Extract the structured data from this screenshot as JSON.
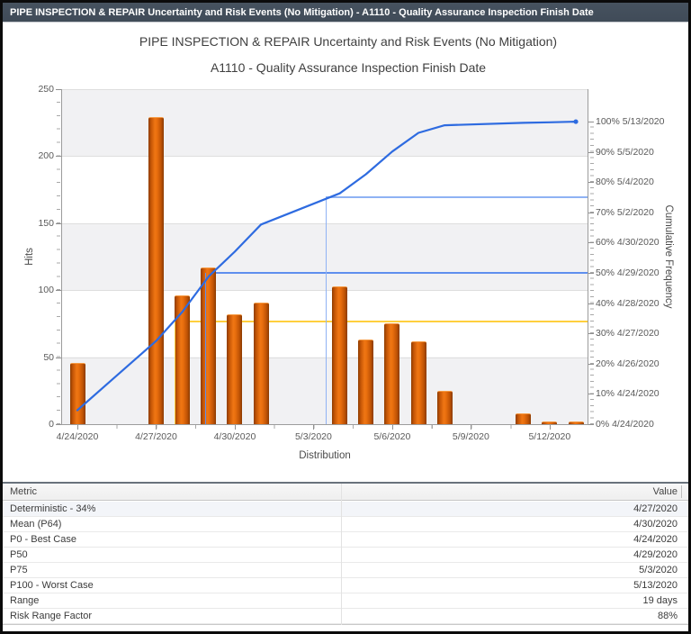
{
  "window": {
    "title": "PIPE INSPECTION & REPAIR Uncertainty and Risk Events (No Mitigation) - A1110 - Quality Assurance Inspection Finish Date"
  },
  "chart": {
    "title_line1": "PIPE INSPECTION & REPAIR Uncertainty and Risk Events (No Mitigation)",
    "title_line2": "A1110 - Quality Assurance Inspection Finish Date",
    "xlabel": "Distribution",
    "ylabel_left": "Hits",
    "ylabel_right": "Cumulative Frequency"
  },
  "chart_data": {
    "type": "bar",
    "subtype": "histogram-with-cumulative-s-curve",
    "title": "PIPE INSPECTION & REPAIR Uncertainty and Risk Events (No Mitigation)",
    "subtitle": "A1110 - Quality Assurance Inspection Finish Date",
    "xlabel": "Distribution",
    "grid": "horizontal-bands",
    "x_axis": {
      "start_date": "4/24/2020",
      "end_date": "5/13/2020",
      "total_days": 19,
      "tick_labels": [
        "4/24/2020",
        "4/27/2020",
        "4/30/2020",
        "5/3/2020",
        "5/6/2020",
        "5/9/2020",
        "5/12/2020"
      ],
      "tick_days": [
        0,
        3,
        6,
        9,
        12,
        15,
        18
      ]
    },
    "y_left": {
      "label": "Hits",
      "min": 0,
      "max": 250,
      "tick_step": 50,
      "tick_values": [
        0,
        50,
        100,
        150,
        200,
        250
      ]
    },
    "y_right": {
      "label": "Cumulative Frequency",
      "tick_labels": [
        "0% 4/24/2020",
        "10% 4/24/2020",
        "20% 4/26/2020",
        "30% 4/27/2020",
        "40% 4/28/2020",
        "50% 4/29/2020",
        "60% 4/30/2020",
        "70% 5/2/2020",
        "80% 5/4/2020",
        "90% 5/5/2020",
        "100% 5/13/2020"
      ],
      "tick_pcts": [
        0,
        10,
        20,
        30,
        40,
        50,
        60,
        70,
        80,
        90,
        100
      ]
    },
    "bars": [
      {
        "date": "4/24/2020",
        "day": 0,
        "hits": 46
      },
      {
        "date": "4/27/2020",
        "day": 3,
        "hits": 229
      },
      {
        "date": "4/28/2020",
        "day": 4,
        "hits": 96
      },
      {
        "date": "4/29/2020",
        "day": 5,
        "hits": 117
      },
      {
        "date": "4/30/2020",
        "day": 6,
        "hits": 82
      },
      {
        "date": "5/1/2020",
        "day": 7,
        "hits": 91
      },
      {
        "date": "5/4/2020",
        "day": 10,
        "hits": 103
      },
      {
        "date": "5/5/2020",
        "day": 11,
        "hits": 63
      },
      {
        "date": "5/6/2020",
        "day": 12,
        "hits": 75
      },
      {
        "date": "5/7/2020",
        "day": 13,
        "hits": 62
      },
      {
        "date": "5/8/2020",
        "day": 14,
        "hits": 25
      },
      {
        "date": "5/11/2020",
        "day": 17,
        "hits": 8
      },
      {
        "date": "5/12/2020",
        "day": 18,
        "hits": 2
      },
      {
        "date": "5/13/2020",
        "day": 19,
        "hits": 2
      }
    ],
    "curve": [
      {
        "day": 0,
        "pct": 4.6
      },
      {
        "day": 3,
        "pct": 27.5
      },
      {
        "day": 4,
        "pct": 37.1
      },
      {
        "day": 5,
        "pct": 48.8
      },
      {
        "day": 6,
        "pct": 57.0
      },
      {
        "day": 7,
        "pct": 66.0
      },
      {
        "day": 10,
        "pct": 76.3
      },
      {
        "day": 11,
        "pct": 82.6
      },
      {
        "day": 12,
        "pct": 90.1
      },
      {
        "day": 13,
        "pct": 96.3
      },
      {
        "day": 14,
        "pct": 98.8
      },
      {
        "day": 17,
        "pct": 99.6
      },
      {
        "day": 18,
        "pct": 99.8
      },
      {
        "day": 19,
        "pct": 100
      }
    ],
    "ref_lines": [
      {
        "name": "deterministic-34pct",
        "pct": 34,
        "day": 3.7,
        "color": "#FFCF3E"
      },
      {
        "name": "p50",
        "pct": 50,
        "day": 4.87,
        "color": "#5F8FEE"
      },
      {
        "name": "p75",
        "pct": 75,
        "day": 9.46,
        "color": "#8FB2F4"
      }
    ],
    "colors": {
      "bar": "#E2660C",
      "curve": "#2E6BE0",
      "titlebar": "#46525F",
      "band": "#F1F1F3"
    }
  },
  "table": {
    "columns": [
      "Metric",
      "Value"
    ],
    "rows": [
      [
        "Deterministic - 34%",
        "4/27/2020"
      ],
      [
        "Mean (P64)",
        "4/30/2020"
      ],
      [
        "P0 - Best Case",
        "4/24/2020"
      ],
      [
        "P50",
        "4/29/2020"
      ],
      [
        "P75",
        "5/3/2020"
      ],
      [
        "P100 - Worst Case",
        "5/13/2020"
      ],
      [
        "Range",
        "19 days"
      ],
      [
        "Risk Range Factor",
        "88%"
      ]
    ]
  }
}
